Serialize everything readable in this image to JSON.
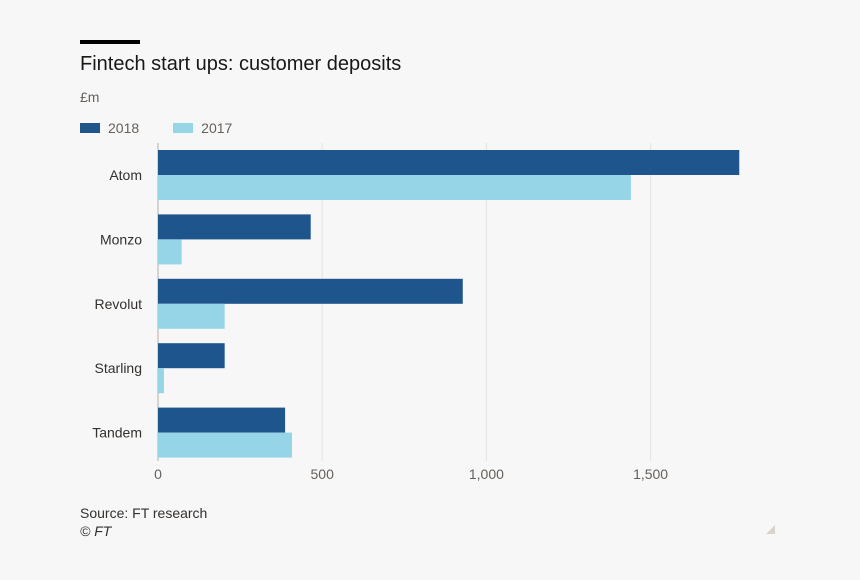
{
  "header": {
    "title": "Fintech start ups: customer deposits",
    "unit": "£m"
  },
  "legend": [
    {
      "label": "2018",
      "color": "#1e558c"
    },
    {
      "label": "2017",
      "color": "#96d4e8"
    }
  ],
  "chart_data": {
    "type": "bar",
    "orientation": "horizontal",
    "title": "Fintech start ups: customer deposits",
    "unit": "£m",
    "categories": [
      "Atom",
      "Monzo",
      "Revolut",
      "Starling",
      "Tandem"
    ],
    "series": [
      {
        "name": "2018",
        "color": "#1e558c",
        "values": [
          1770,
          465,
          928,
          203,
          387
        ]
      },
      {
        "name": "2017",
        "color": "#96d4e8",
        "values": [
          1440,
          72,
          203,
          18,
          408
        ]
      }
    ],
    "xlim": [
      0,
      1800
    ],
    "xticks": [
      0,
      500,
      1000,
      1500
    ],
    "xtick_labels": [
      "0",
      "500",
      "1,000",
      "1,500"
    ],
    "grid": true,
    "legend_position": "top-left"
  },
  "footer": {
    "source": "Source: FT research",
    "copyright": "© FT"
  }
}
